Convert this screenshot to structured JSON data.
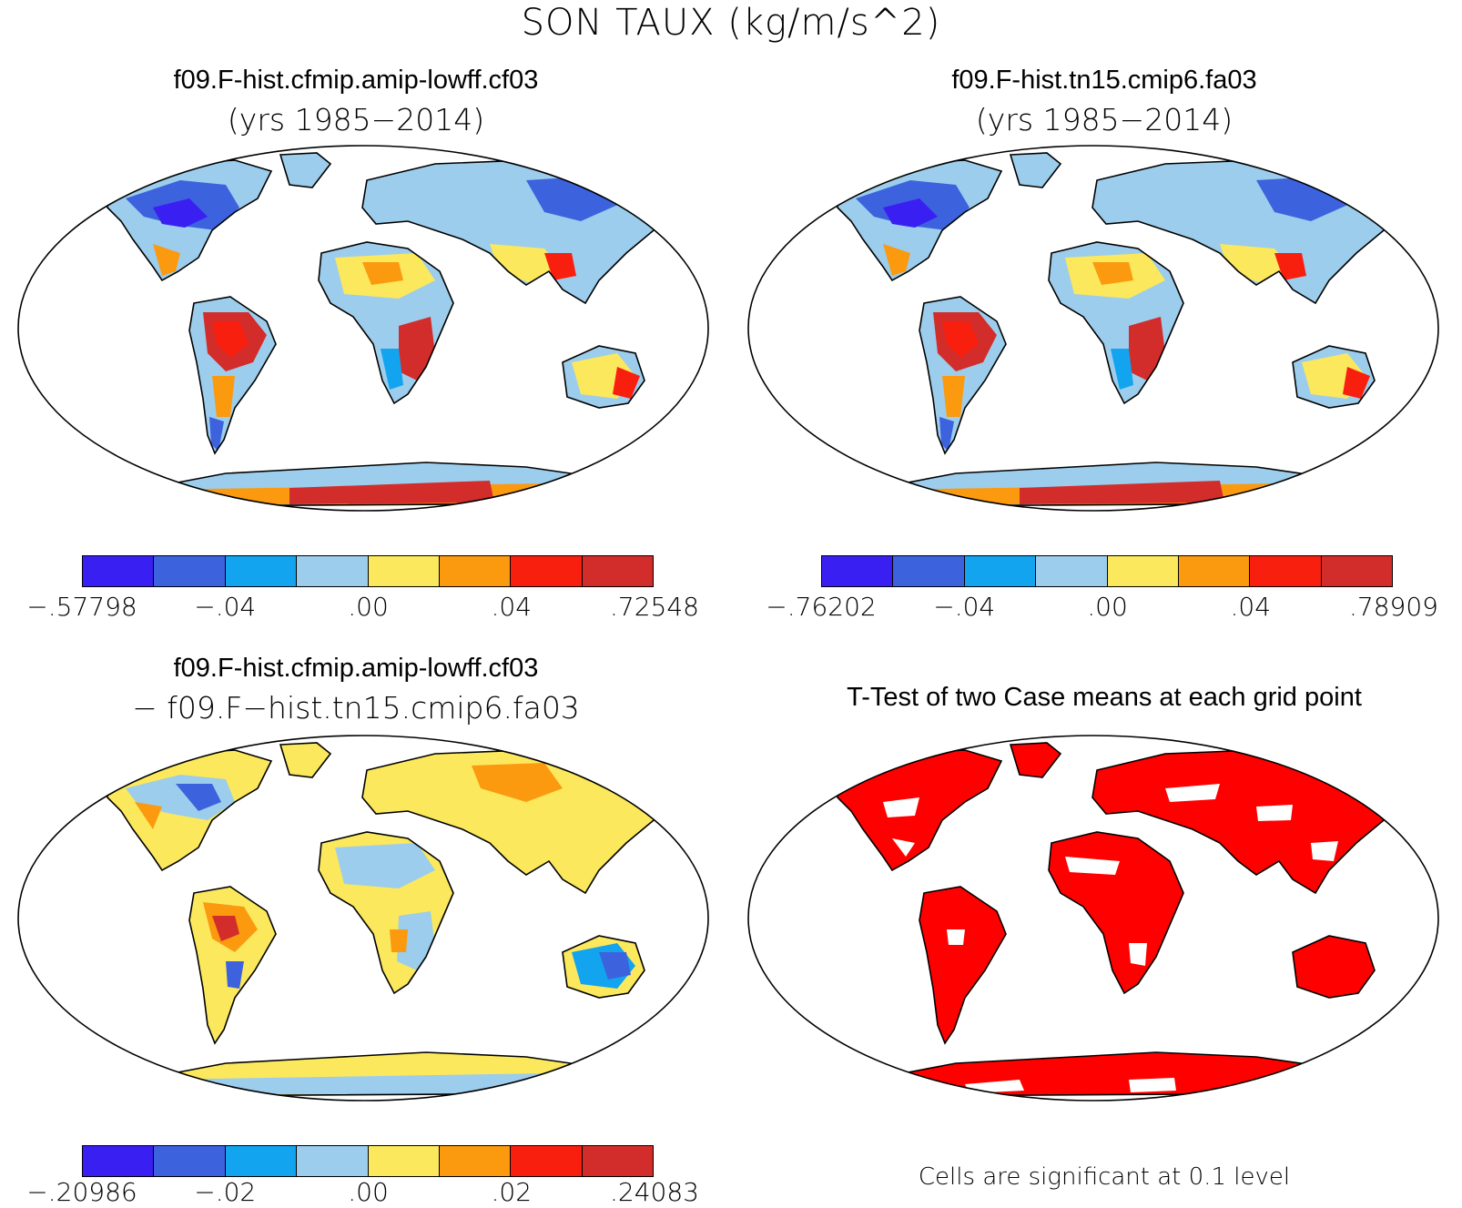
{
  "title": "SON TAUX (kg/m/s^2)",
  "colors": {
    "scale": [
      "#3a1ff2",
      "#3c62de",
      "#12a4ee",
      "#9ccdec",
      "#fbe85d",
      "#fb9a0e",
      "#f91f0f",
      "#d22d2b"
    ],
    "significant": "#ff0000",
    "ocean": "#ffffff",
    "coast": "#000000"
  },
  "panels": {
    "top_left": {
      "title": "f09.F-hist.cfmip.amip-lowff.cf03",
      "subtitle": "(yrs 1985−2014)",
      "colorbar_ticks": [
        "−.57798",
        "−.04",
        ".00",
        ".04",
        ".72548"
      ]
    },
    "top_right": {
      "title": "f09.F-hist.tn15.cmip6.fa03",
      "subtitle": "(yrs 1985−2014)",
      "colorbar_ticks": [
        "−.76202",
        "−.04",
        ".00",
        ".04",
        ".78909"
      ]
    },
    "bottom_left": {
      "title": "f09.F-hist.cfmip.amip-lowff.cf03",
      "subtitle": "− f09.F−hist.tn15.cmip6.fa03",
      "colorbar_ticks": [
        "−.20986",
        "−.02",
        ".00",
        ".02",
        ".24083"
      ]
    },
    "bottom_right": {
      "title": "T-Test of two Case means at each grid point",
      "footnote": "Cells are significant at 0.1 level"
    }
  }
}
